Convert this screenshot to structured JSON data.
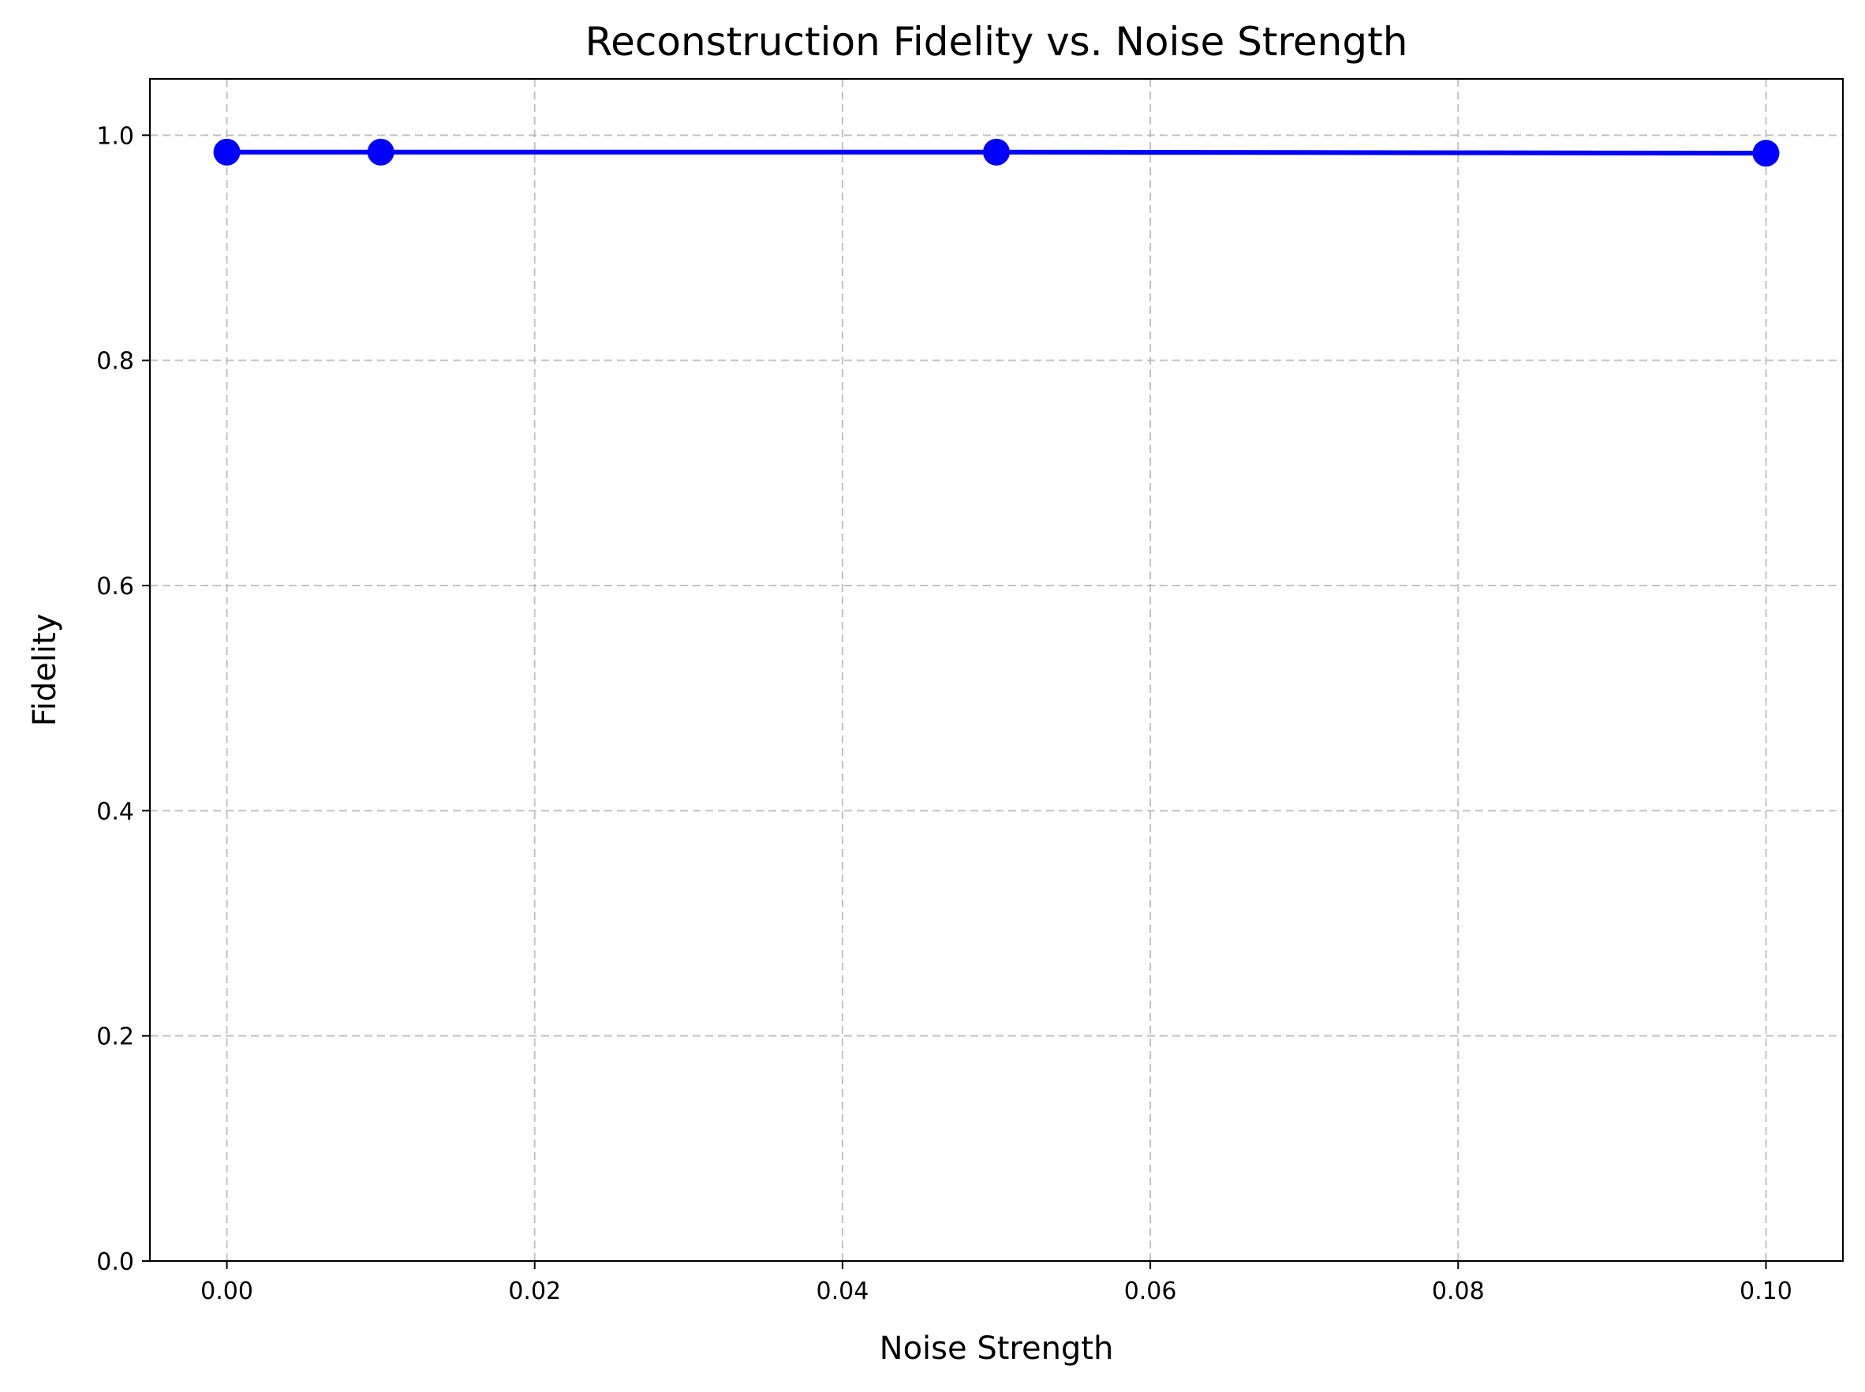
{
  "chart_data": {
    "type": "line",
    "title": "Reconstruction Fidelity vs. Noise Strength",
    "xlabel": "Noise Strength",
    "ylabel": "Fidelity",
    "xlim": [
      -0.005,
      0.105
    ],
    "ylim": [
      0.0,
      1.05
    ],
    "x_ticks": [
      0.0,
      0.02,
      0.04,
      0.06,
      0.08,
      0.1
    ],
    "x_tick_labels": [
      "0.00",
      "0.02",
      "0.04",
      "0.06",
      "0.08",
      "0.10"
    ],
    "y_ticks": [
      0.0,
      0.2,
      0.4,
      0.6,
      0.8,
      1.0
    ],
    "y_tick_labels": [
      "0.0",
      "0.2",
      "0.4",
      "0.6",
      "0.8",
      "1.0"
    ],
    "grid": true,
    "series": [
      {
        "color": "#0000ff",
        "marker": "circle",
        "x": [
          0.0,
          0.01,
          0.05,
          0.1
        ],
        "y": [
          0.985,
          0.985,
          0.985,
          0.984
        ]
      }
    ]
  }
}
